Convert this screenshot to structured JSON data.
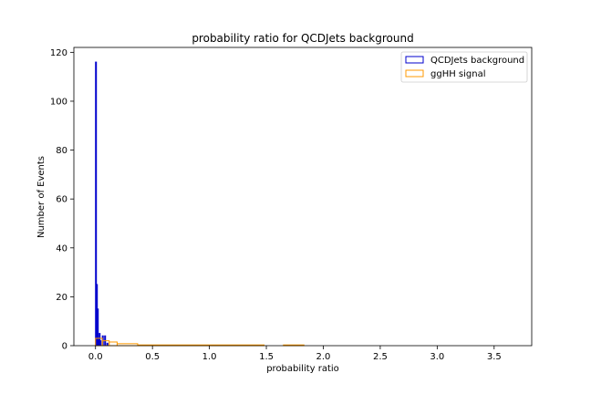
{
  "chart_data": {
    "type": "histogram",
    "title": "probability ratio for QCDJets background",
    "xlabel": "probability ratio",
    "ylabel": "Number of Events",
    "xlim": [
      -0.19,
      3.83
    ],
    "ylim": [
      0,
      122
    ],
    "xticks": [
      0.0,
      0.5,
      1.0,
      1.5,
      2.0,
      2.5,
      3.0,
      3.5
    ],
    "yticks": [
      0,
      20,
      40,
      60,
      80,
      100,
      120
    ],
    "xtick_labels": [
      "0.0",
      "0.5",
      "1.0",
      "1.5",
      "2.0",
      "2.5",
      "3.0",
      "3.5"
    ],
    "ytick_labels": [
      "0",
      "20",
      "40",
      "60",
      "80",
      "100",
      "120"
    ],
    "grid": false,
    "legend_position": "top-right",
    "series": [
      {
        "name": "QCDJets background",
        "color": "#0000cc",
        "histtype": "step",
        "bins": [
          {
            "x0": 0.0,
            "x1": 0.008,
            "count": 116
          },
          {
            "x0": 0.008,
            "x1": 0.016,
            "count": 25
          },
          {
            "x0": 0.016,
            "x1": 0.024,
            "count": 15
          },
          {
            "x0": 0.024,
            "x1": 0.032,
            "count": 3
          },
          {
            "x0": 0.032,
            "x1": 0.04,
            "count": 5
          },
          {
            "x0": 0.04,
            "x1": 0.048,
            "count": 2
          },
          {
            "x0": 0.048,
            "x1": 0.06,
            "count": 0
          },
          {
            "x0": 0.06,
            "x1": 0.068,
            "count": 4
          },
          {
            "x0": 0.068,
            "x1": 0.08,
            "count": 0
          },
          {
            "x0": 0.08,
            "x1": 0.088,
            "count": 4
          },
          {
            "x0": 0.088,
            "x1": 0.1,
            "count": 0
          },
          {
            "x0": 0.1,
            "x1": 0.108,
            "count": 1
          }
        ]
      },
      {
        "name": "ggHH signal",
        "color": "#ff9900",
        "histtype": "step",
        "bins": [
          {
            "x0": 0.0,
            "x1": 0.06,
            "count": 3
          },
          {
            "x0": 0.06,
            "x1": 0.12,
            "count": 2
          },
          {
            "x0": 0.12,
            "x1": 0.19,
            "count": 1.5
          },
          {
            "x0": 0.19,
            "x1": 0.37,
            "count": 0.8
          },
          {
            "x0": 0.37,
            "x1": 1.48,
            "count": 0.3
          },
          {
            "x0": 1.48,
            "x1": 1.65,
            "count": 0
          },
          {
            "x0": 1.65,
            "x1": 1.83,
            "count": 0.3
          }
        ]
      }
    ]
  }
}
